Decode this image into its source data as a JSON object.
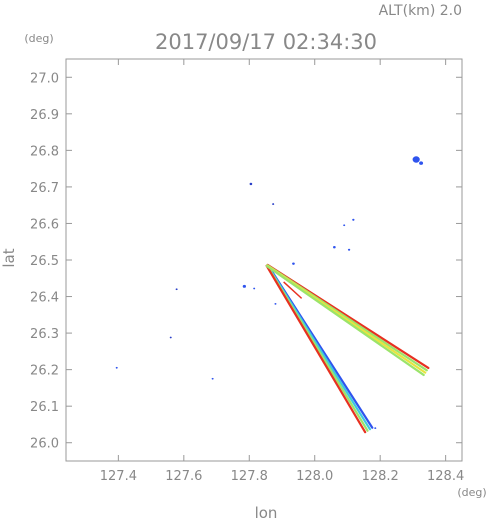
{
  "header": {
    "altitude_label": "ALT(km)",
    "altitude_value": "2.0",
    "timestamp": "2017/09/17 02:34:30"
  },
  "chart_data": {
    "type": "scatter",
    "title": "2017/09/17 02:34:30",
    "xlabel": "lon",
    "ylabel": "lat",
    "x_unit": "(deg)",
    "y_unit": "(deg)",
    "xlim": [
      127.24,
      128.45
    ],
    "ylim": [
      25.95,
      27.05
    ],
    "x_ticks": [
      127.4,
      127.6,
      127.8,
      128.0,
      128.2,
      128.4
    ],
    "x_tick_labels": [
      "127.4",
      "127.6",
      "127.8",
      "128.0",
      "128.2",
      "128.4"
    ],
    "y_ticks": [
      26.0,
      26.1,
      26.2,
      26.3,
      26.4,
      26.5,
      26.6,
      26.7,
      26.8,
      26.9,
      27.0
    ],
    "y_tick_labels": [
      "26.0",
      "26.1",
      "26.2",
      "26.3",
      "26.4",
      "26.5",
      "26.6",
      "26.7",
      "26.8",
      "26.9",
      "27.0"
    ],
    "grid": false,
    "colors": {
      "echo_blue": "#2f54ee",
      "echo_blue_dark": "#2a3fc8",
      "echo_cyan": "#3ec8e0",
      "echo_green": "#9be46a",
      "echo_yellow": "#e8e440",
      "echo_red": "#e83020",
      "axis": "#999999",
      "text": "#888888"
    },
    "echoes": [
      {
        "lon": 128.31,
        "lat": 26.775,
        "size": 0.022,
        "color": "echo_blue"
      },
      {
        "lon": 128.325,
        "lat": 26.765,
        "size": 0.012,
        "color": "echo_blue"
      },
      {
        "lon": 127.805,
        "lat": 26.708,
        "size": 0.008,
        "color": "echo_blue_dark"
      },
      {
        "lon": 127.873,
        "lat": 26.653,
        "size": 0.005,
        "color": "echo_blue_dark"
      },
      {
        "lon": 128.118,
        "lat": 26.61,
        "size": 0.007,
        "color": "echo_blue"
      },
      {
        "lon": 128.09,
        "lat": 26.595,
        "size": 0.004,
        "color": "echo_blue"
      },
      {
        "lon": 128.06,
        "lat": 26.535,
        "size": 0.008,
        "color": "echo_blue"
      },
      {
        "lon": 128.105,
        "lat": 26.528,
        "size": 0.007,
        "color": "echo_blue"
      },
      {
        "lon": 127.935,
        "lat": 26.49,
        "size": 0.008,
        "color": "echo_blue"
      },
      {
        "lon": 127.785,
        "lat": 26.428,
        "size": 0.01,
        "color": "echo_blue"
      },
      {
        "lon": 127.815,
        "lat": 26.422,
        "size": 0.003,
        "color": "echo_blue"
      },
      {
        "lon": 127.88,
        "lat": 26.38,
        "size": 0.004,
        "color": "echo_blue"
      },
      {
        "lon": 127.395,
        "lat": 26.205,
        "size": 0.006,
        "color": "echo_blue"
      },
      {
        "lon": 127.688,
        "lat": 26.175,
        "size": 0.006,
        "color": "echo_blue"
      },
      {
        "lon": 127.578,
        "lat": 26.42,
        "size": 0.002,
        "color": "echo_blue_dark"
      },
      {
        "lon": 127.56,
        "lat": 26.288,
        "size": 0.002,
        "color": "echo_blue_dark"
      },
      {
        "lon": 128.185,
        "lat": 26.04,
        "size": 0.003,
        "color": "echo_blue"
      }
    ],
    "radials": [
      {
        "start_lon": 127.855,
        "start_lat": 26.485,
        "end_lon": 128.165,
        "end_lat": 26.035,
        "bands": [
          "echo_blue",
          "echo_cyan",
          "echo_green",
          "echo_red"
        ]
      },
      {
        "start_lon": 127.855,
        "start_lat": 26.485,
        "end_lon": 128.34,
        "end_lat": 26.195,
        "bands": [
          "echo_red",
          "echo_green",
          "echo_yellow",
          "echo_green"
        ]
      }
    ],
    "red_streak": {
      "start_lon": 127.905,
      "start_lat": 26.44,
      "end_lon": 127.96,
      "end_lat": 26.395,
      "color": "echo_red"
    }
  }
}
